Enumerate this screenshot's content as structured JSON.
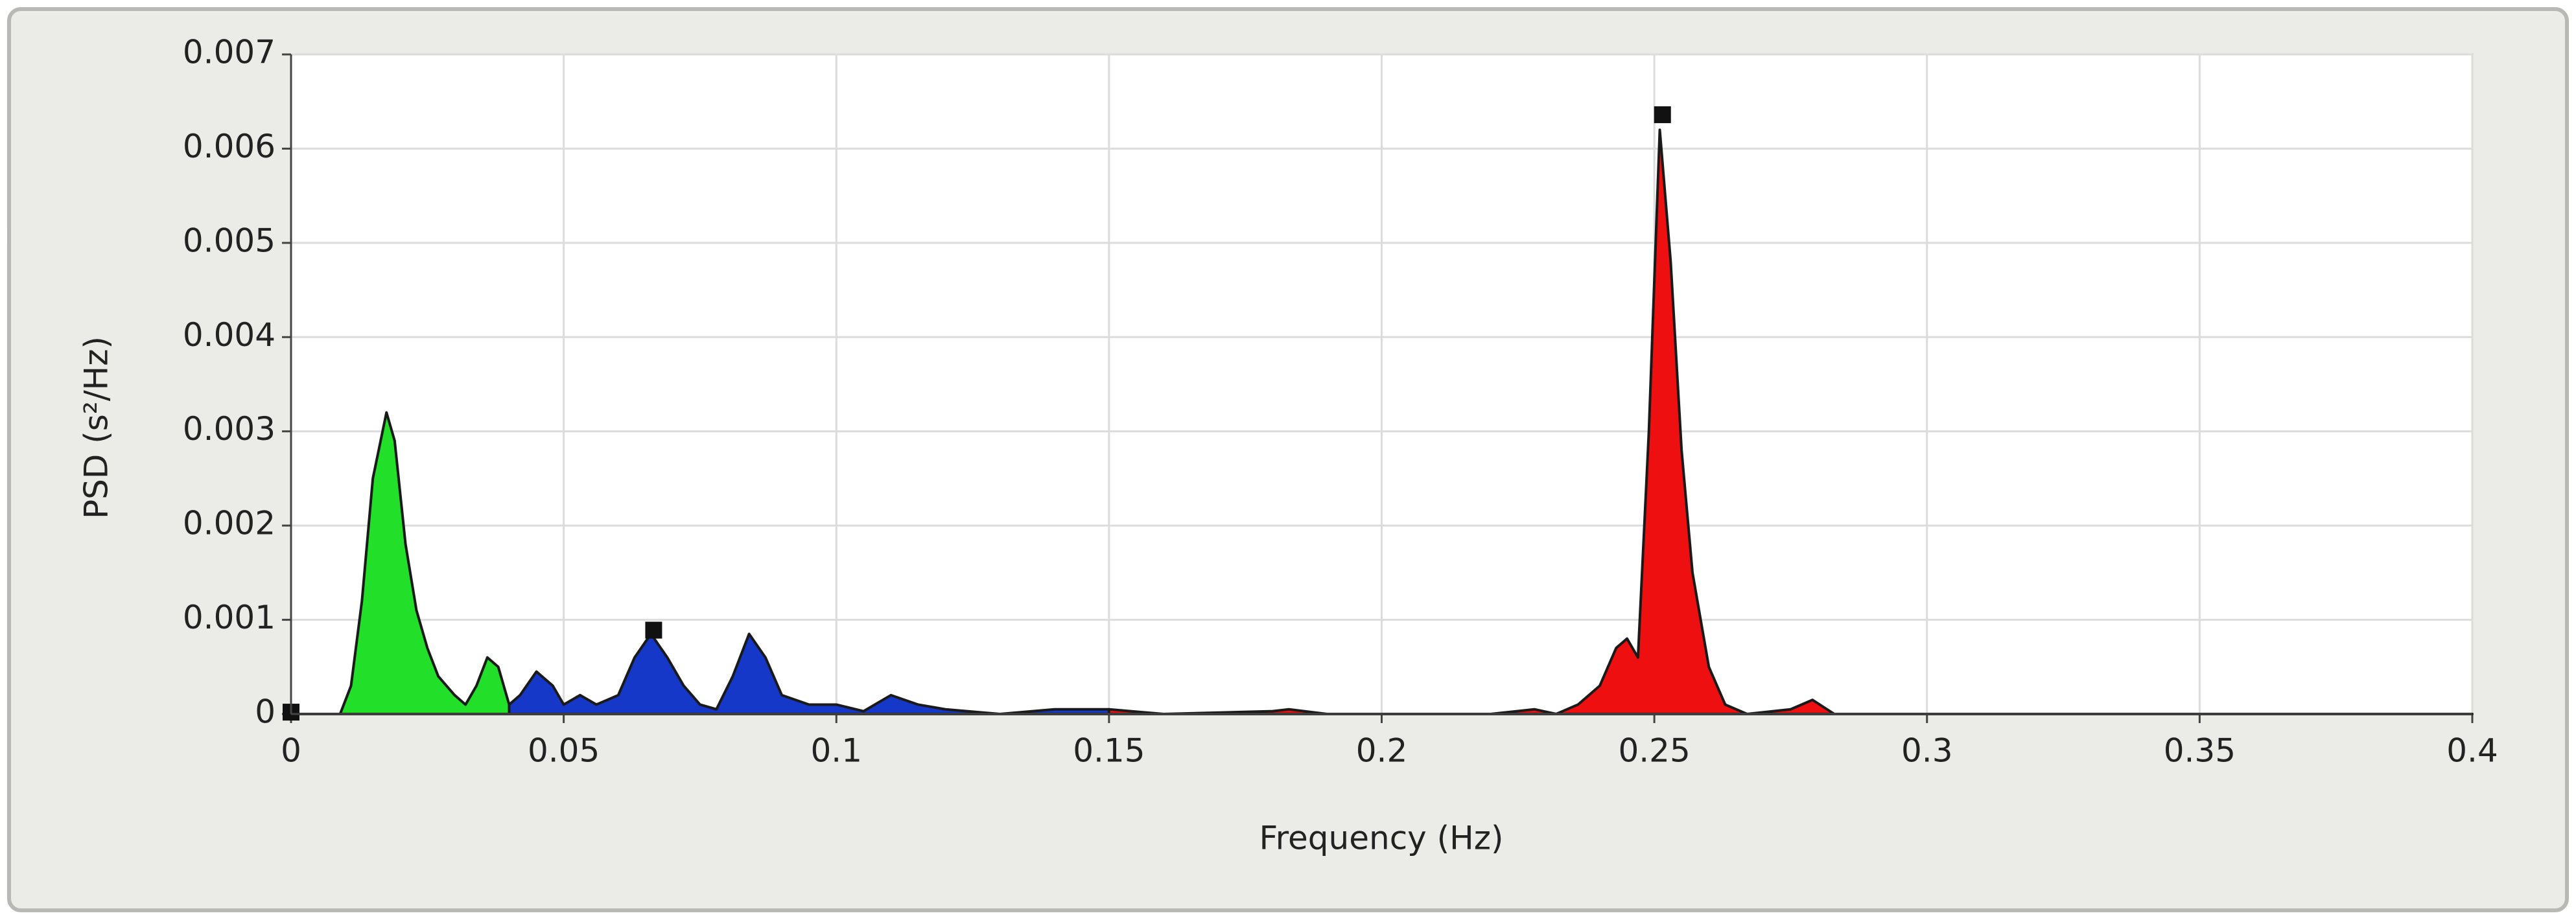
{
  "chart_data": {
    "type": "area",
    "x_label": "Frequency (Hz)",
    "y_label": "PSD (s²/Hz)",
    "xlim": [
      0,
      0.4
    ],
    "xticks": [
      0,
      0.05,
      0.1,
      0.15,
      0.2,
      0.25,
      0.3,
      0.35,
      0.4
    ],
    "ylim": [
      0,
      0.007
    ],
    "yticks": [
      0,
      0.001,
      0.002,
      0.003,
      0.004,
      0.005,
      0.006,
      0.007
    ],
    "grid": true,
    "line_color": "#1a1a1a",
    "x": [
      0,
      0.005,
      0.009,
      0.011,
      0.013,
      0.015,
      0.0175,
      0.019,
      0.021,
      0.023,
      0.025,
      0.027,
      0.03,
      0.032,
      0.034,
      0.036,
      0.038,
      0.04,
      0.042,
      0.045,
      0.048,
      0.05,
      0.053,
      0.056,
      0.06,
      0.063,
      0.066,
      0.069,
      0.072,
      0.075,
      0.078,
      0.081,
      0.084,
      0.087,
      0.09,
      0.095,
      0.1,
      0.105,
      0.11,
      0.115,
      0.12,
      0.13,
      0.14,
      0.15,
      0.16,
      0.18,
      0.183,
      0.19,
      0.22,
      0.228,
      0.232,
      0.236,
      0.24,
      0.243,
      0.245,
      0.247,
      0.249,
      0.251,
      0.253,
      0.255,
      0.257,
      0.26,
      0.263,
      0.267,
      0.275,
      0.279,
      0.283,
      0.3,
      0.35,
      0.4
    ],
    "series": [
      {
        "color": "#22e02a",
        "values": [
          0,
          0,
          0,
          0.0003,
          0.0012,
          0.0025,
          0.0032,
          0.0029,
          0.0018,
          0.0011,
          0.0007,
          0.0004,
          0.0002,
          0.0001,
          0.0003,
          0.0006,
          0.0005,
          0.0001,
          null,
          null,
          null,
          null,
          null,
          null,
          null,
          null,
          null,
          null,
          null,
          null,
          null,
          null,
          null,
          null,
          null,
          null,
          null,
          null,
          null,
          null,
          null,
          null,
          null,
          null,
          null,
          null,
          null,
          null,
          null,
          null,
          null,
          null,
          null,
          null,
          null,
          null,
          null,
          null,
          null,
          null,
          null,
          null,
          null,
          null,
          null,
          null,
          null,
          null,
          null,
          null
        ]
      },
      {
        "color": "#1538c8",
        "values": [
          null,
          null,
          null,
          null,
          null,
          null,
          null,
          null,
          null,
          null,
          null,
          null,
          null,
          null,
          null,
          null,
          null,
          0.0001,
          0.0002,
          0.00045,
          0.0003,
          0.0001,
          0.0002,
          0.0001,
          0.0002,
          0.0006,
          0.00085,
          0.0006,
          0.0003,
          0.0001,
          5e-05,
          0.0004,
          0.00085,
          0.0006,
          0.0002,
          0.0001,
          0.0001,
          3e-05,
          0.0002,
          0.0001,
          5e-05,
          0,
          5e-05,
          5e-05,
          null,
          null,
          null,
          null,
          null,
          null,
          null,
          null,
          null,
          null,
          null,
          null,
          null,
          null,
          null,
          null,
          null,
          null,
          null,
          null,
          null,
          null,
          null,
          null,
          null,
          null
        ]
      },
      {
        "color": "#ee1010",
        "values": [
          null,
          null,
          null,
          null,
          null,
          null,
          null,
          null,
          null,
          null,
          null,
          null,
          null,
          null,
          null,
          null,
          null,
          null,
          null,
          null,
          null,
          null,
          null,
          null,
          null,
          null,
          null,
          null,
          null,
          null,
          null,
          null,
          null,
          null,
          null,
          null,
          null,
          null,
          null,
          null,
          null,
          null,
          null,
          5e-05,
          0,
          3e-05,
          5e-05,
          0,
          0,
          5e-05,
          0,
          0.0001,
          0.0003,
          0.0007,
          0.0008,
          0.0006,
          0.003,
          0.0062,
          0.0048,
          0.0028,
          0.0015,
          0.0005,
          0.0001,
          0,
          5e-05,
          0.00015,
          0,
          0,
          0,
          0
        ]
      }
    ],
    "markers": {
      "color": "#111111",
      "x": [
        0,
        0.0665,
        0.2515
      ],
      "values": [
        2e-05,
        0.00089,
        0.00636
      ]
    }
  }
}
